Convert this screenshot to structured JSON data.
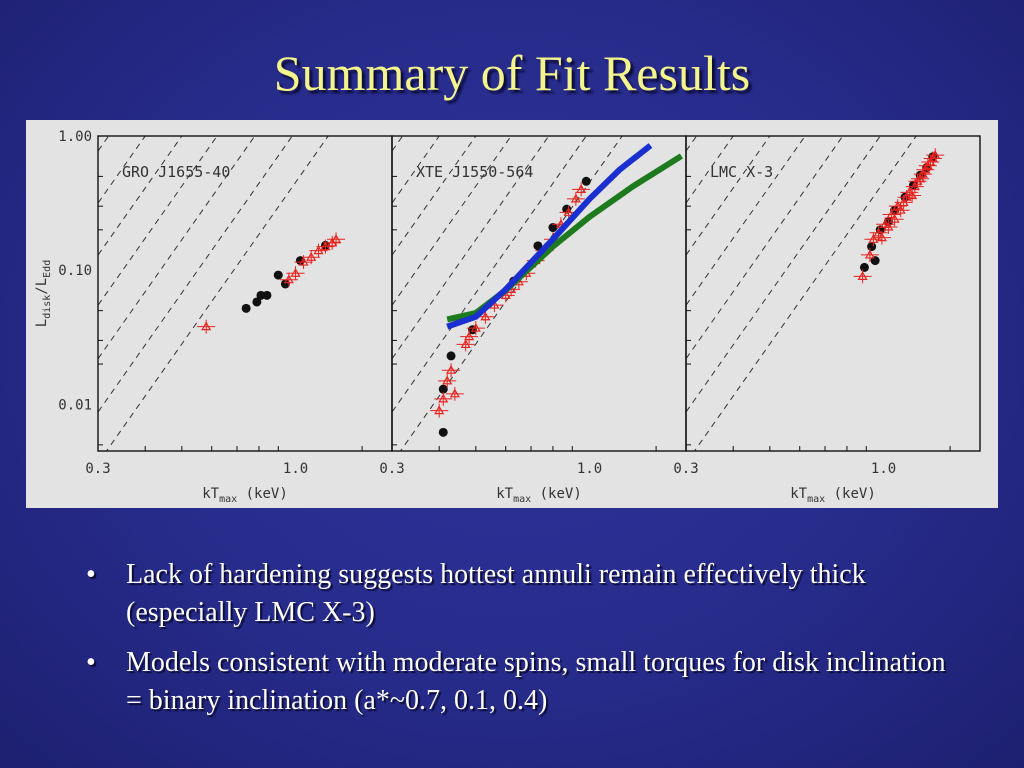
{
  "slide": {
    "title": "Summary of Fit Results",
    "bullets": [
      "Lack of hardening suggests hottest annuli remain effectively thick (especially LMC X-3)",
      "Models consistent with moderate spins, small torques for disk inclination = binary inclination (a*~0.7, 0.1, 0.4)"
    ]
  },
  "chart_data": [
    {
      "type": "scatter",
      "title": "GRO J1655-40",
      "xlabel": "kTmax (keV)",
      "ylabel": "Ldisk/LEdd",
      "xscale": "log",
      "yscale": "log",
      "xlim": [
        0.3,
        1.8
      ],
      "ylim": [
        0.0045,
        1.0
      ],
      "xticks": [
        "0.3",
        "1.0"
      ],
      "yticks": [
        "1.00",
        "0.10",
        "0.01"
      ],
      "reference_lines": "dashed constant-radius lines, L ∝ T^4",
      "series": [
        {
          "marker": "black-circle",
          "x": [
            0.74,
            0.79,
            0.81,
            0.84,
            0.9,
            0.94,
            1.03,
            1.2
          ],
          "y": [
            0.052,
            0.058,
            0.065,
            0.065,
            0.092,
            0.079,
            0.118,
            0.153
          ]
        },
        {
          "marker": "red-triangle",
          "x": [
            0.58,
            0.96,
            1.0,
            1.05,
            1.1,
            1.15,
            1.2,
            1.25,
            1.28
          ],
          "y": [
            0.038,
            0.085,
            0.095,
            0.115,
            0.125,
            0.14,
            0.15,
            0.16,
            0.17
          ]
        }
      ]
    },
    {
      "type": "scatter",
      "title": "XTE J1550-564",
      "xlabel": "kTmax (keV)",
      "ylabel": "Ldisk/LEdd",
      "xscale": "log",
      "yscale": "log",
      "xlim": [
        0.3,
        1.8
      ],
      "ylim": [
        0.0045,
        1.0
      ],
      "xticks": [
        "0.3",
        "1.0"
      ],
      "yticks": [
        "1.00",
        "0.10",
        "0.01"
      ],
      "series": [
        {
          "marker": "black-circle",
          "x": [
            0.41,
            0.41,
            0.43,
            0.49,
            0.63,
            0.73,
            0.8,
            0.87,
            0.98
          ],
          "y": [
            0.0062,
            0.013,
            0.023,
            0.036,
            0.083,
            0.152,
            0.208,
            0.285,
            0.46
          ]
        },
        {
          "marker": "red-triangle",
          "x": [
            0.4,
            0.41,
            0.42,
            0.43,
            0.44,
            0.47,
            0.48,
            0.5,
            0.53,
            0.56,
            0.6,
            0.62,
            0.65,
            0.68,
            0.72,
            0.76,
            0.8,
            0.84,
            0.88,
            0.92,
            0.95
          ],
          "y": [
            0.009,
            0.011,
            0.015,
            0.018,
            0.012,
            0.028,
            0.032,
            0.037,
            0.045,
            0.055,
            0.065,
            0.072,
            0.082,
            0.095,
            0.118,
            0.14,
            0.17,
            0.22,
            0.27,
            0.34,
            0.4
          ]
        },
        {
          "name": "",
          "line": "green",
          "x": [
            0.42,
            0.5,
            0.6,
            0.8,
            1.0,
            1.3,
            1.75
          ],
          "y": [
            0.043,
            0.048,
            0.071,
            0.15,
            0.25,
            0.42,
            0.71
          ]
        },
        {
          "name": "",
          "line": "blue",
          "x": [
            0.42,
            0.5,
            0.6,
            0.8,
            1.0,
            1.2,
            1.45
          ],
          "y": [
            0.038,
            0.045,
            0.072,
            0.17,
            0.34,
            0.56,
            0.85
          ]
        }
      ]
    },
    {
      "type": "scatter",
      "title": "LMC X-3",
      "xlabel": "kTmax (keV)",
      "ylabel": "Ldisk/LEdd",
      "xscale": "log",
      "yscale": "log",
      "xlim": [
        0.3,
        1.8
      ],
      "ylim": [
        0.0045,
        1.0
      ],
      "xticks": [
        "0.3",
        "1.0"
      ],
      "yticks": [
        "1.00",
        "0.10",
        "0.01"
      ],
      "series": [
        {
          "marker": "black-circle",
          "x": [
            0.89,
            0.93,
            0.95,
            0.98,
            1.03,
            1.07,
            1.14,
            1.2,
            1.25,
            1.3,
            1.35
          ],
          "y": [
            0.105,
            0.15,
            0.118,
            0.2,
            0.23,
            0.28,
            0.35,
            0.43,
            0.51,
            0.58,
            0.7
          ]
        },
        {
          "marker": "red-triangle",
          "x": [
            0.88,
            0.92,
            0.94,
            0.97,
            0.99,
            1.01,
            1.03,
            1.05,
            1.07,
            1.09,
            1.11,
            1.13,
            1.15,
            1.17,
            1.19,
            1.21,
            1.23,
            1.25,
            1.27,
            1.29,
            1.31,
            1.33,
            1.35,
            1.37
          ],
          "y": [
            0.09,
            0.13,
            0.17,
            0.19,
            0.175,
            0.22,
            0.21,
            0.26,
            0.24,
            0.3,
            0.28,
            0.32,
            0.35,
            0.38,
            0.36,
            0.42,
            0.46,
            0.48,
            0.52,
            0.56,
            0.6,
            0.64,
            0.68,
            0.72
          ]
        }
      ]
    }
  ]
}
